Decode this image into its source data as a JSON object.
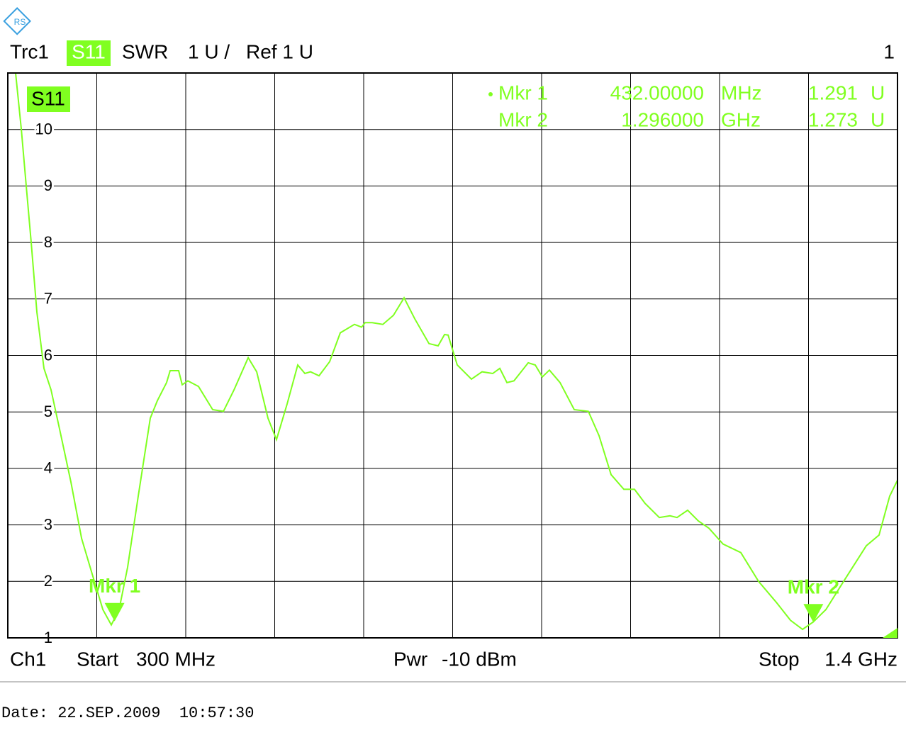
{
  "chart_data": {
    "type": "line",
    "trace_info": {
      "trace": "Trc1",
      "parameter": "S11",
      "format": "SWR",
      "scale": "1 U /",
      "ref": "Ref 1 U",
      "window": "1"
    },
    "footer": {
      "channel": "Ch1",
      "start": "Start",
      "power_label": "Pwr",
      "power": "-10 dBm",
      "stop": "Stop"
    },
    "xlim": [
      300,
      1400
    ],
    "xticks": [
      {
        "value": 300,
        "label": "300 MHz"
      },
      {
        "value": 1400,
        "label": "1.4 GHz"
      }
    ],
    "ylim": [
      1,
      11
    ],
    "yticks": [
      1,
      2,
      3,
      4,
      5,
      6,
      7,
      8,
      9,
      10
    ],
    "grid": true,
    "series": [
      {
        "name": "S11",
        "color": "#80ff20",
        "x": [
          309.6,
          316.7,
          322.8,
          328.9,
          335.9,
          344.7,
          353.5,
          364.9,
          378.0,
          391.2,
          404.3,
          417.5,
          428.0,
          437.6,
          448.1,
          461.3,
          476.2,
          484.9,
          496.3,
          500.7,
          511.2,
          515.6,
          522.6,
          535.8,
          553.3,
          566.5,
          579.7,
          597.2,
          607.7,
          621.7,
          632.2,
          645.3,
          658.5,
          667.3,
          674.3,
          684.8,
          697.9,
          711.1,
          728.6,
          737.4,
          741.8,
          750.5,
          763.7,
          776.8,
          790.0,
          803.1,
          820.7,
          832.0,
          840.0,
          844.4,
          855.7,
          873.2,
          886.4,
          899.5,
          908.3,
          917.1,
          925.8,
          943.4,
          952.1,
          960.9,
          969.6,
          982.8,
          1000.3,
          1017.8,
          1031.0,
          1045.9,
          1061.7,
          1074.8,
          1088.0,
          1105.5,
          1118.7,
          1127.4,
          1140.6,
          1153.7,
          1166.9,
          1184.4,
          1206.3,
          1228.2,
          1250.1,
          1267.7,
          1282.6,
          1295.7,
          1311.5,
          1333.4,
          1361.4,
          1377.2,
          1390.4,
          1400
        ],
        "values": [
          11.0,
          10.0,
          9.0,
          8.0,
          6.77,
          5.77,
          5.39,
          4.64,
          3.76,
          2.76,
          2.13,
          1.5,
          1.23,
          1.5,
          2.25,
          3.51,
          4.89,
          5.2,
          5.52,
          5.73,
          5.73,
          5.48,
          5.55,
          5.45,
          5.04,
          5.01,
          5.39,
          5.96,
          5.71,
          4.89,
          4.51,
          5.14,
          5.83,
          5.68,
          5.71,
          5.64,
          5.89,
          6.4,
          6.55,
          6.5,
          6.58,
          6.58,
          6.55,
          6.71,
          7.02,
          6.65,
          6.21,
          6.17,
          6.37,
          6.36,
          5.83,
          5.58,
          5.71,
          5.68,
          5.77,
          5.52,
          5.55,
          5.87,
          5.83,
          5.62,
          5.74,
          5.52,
          5.04,
          5.01,
          4.58,
          3.89,
          3.63,
          3.63,
          3.38,
          3.13,
          3.16,
          3.13,
          3.26,
          3.07,
          2.94,
          2.66,
          2.51,
          2.0,
          1.63,
          1.31,
          1.15,
          1.28,
          1.5,
          2.0,
          2.63,
          2.82,
          3.51,
          3.79
        ]
      }
    ],
    "markers": [
      {
        "label": "Mkr 1",
        "x": 432,
        "x_label": "432.00000",
        "x_unit": "MHz",
        "y": 1.291,
        "y_label": "1.291",
        "y_unit": "U"
      },
      {
        "label": "Mkr 2",
        "x": 1296,
        "x_label": "1.296000",
        "x_unit": "GHz",
        "y": 1.273,
        "y_label": "1.273",
        "y_unit": "U"
      }
    ]
  },
  "date": "Date: 22.SEP.2009  10:57:30"
}
